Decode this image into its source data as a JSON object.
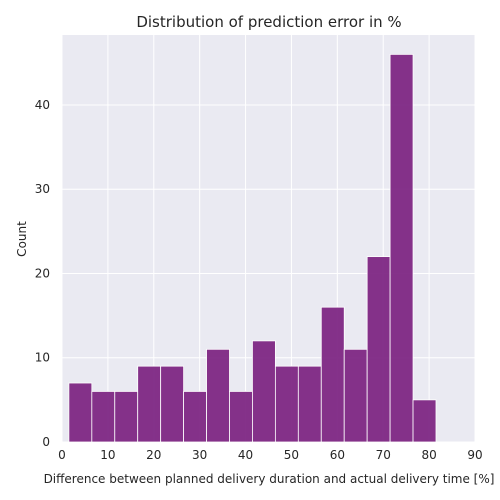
{
  "chart_data": {
    "type": "bar",
    "title": "Distribution of prediction error in %",
    "xlabel": "Difference between planned delivery duration and actual delivery time [%]",
    "ylabel": "Count",
    "xlim": [
      0,
      90
    ],
    "ylim": [
      0,
      48.3
    ],
    "x_ticks": [
      0,
      10,
      20,
      30,
      40,
      50,
      60,
      70,
      80,
      90
    ],
    "y_ticks": [
      0,
      10,
      20,
      30,
      40
    ],
    "bins": [
      {
        "x0": 1.5,
        "x1": 6.5,
        "count": 7
      },
      {
        "x0": 6.5,
        "x1": 11.5,
        "count": 6
      },
      {
        "x0": 11.5,
        "x1": 16.5,
        "count": 6
      },
      {
        "x0": 16.5,
        "x1": 21.5,
        "count": 9
      },
      {
        "x0": 21.5,
        "x1": 26.5,
        "count": 9
      },
      {
        "x0": 26.5,
        "x1": 31.5,
        "count": 6
      },
      {
        "x0": 31.5,
        "x1": 36.5,
        "count": 11
      },
      {
        "x0": 36.5,
        "x1": 41.5,
        "count": 6
      },
      {
        "x0": 41.5,
        "x1": 46.5,
        "count": 12
      },
      {
        "x0": 46.5,
        "x1": 51.5,
        "count": 9
      },
      {
        "x0": 51.5,
        "x1": 56.5,
        "count": 9
      },
      {
        "x0": 56.5,
        "x1": 61.5,
        "count": 16
      },
      {
        "x0": 61.5,
        "x1": 66.5,
        "count": 11
      },
      {
        "x0": 66.5,
        "x1": 71.5,
        "count": 22
      },
      {
        "x0": 71.5,
        "x1": 76.5,
        "count": 46
      },
      {
        "x0": 76.5,
        "x1": 81.5,
        "count": 5
      }
    ],
    "grid": true,
    "colors": {
      "bar_fill": "#7b2180",
      "bar_edge": "#ffffff",
      "plot_background": "#eaeaf2",
      "grid": "#ffffff"
    }
  }
}
